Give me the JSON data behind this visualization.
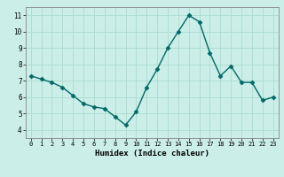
{
  "x": [
    0,
    1,
    2,
    3,
    4,
    5,
    6,
    7,
    8,
    9,
    10,
    11,
    12,
    13,
    14,
    15,
    16,
    17,
    18,
    19,
    20,
    21,
    22,
    23
  ],
  "y": [
    7.3,
    7.1,
    6.9,
    6.6,
    6.1,
    5.6,
    5.4,
    5.3,
    4.8,
    4.3,
    5.1,
    6.6,
    7.7,
    9.0,
    10.0,
    11.0,
    10.6,
    8.7,
    7.3,
    7.9,
    6.9,
    6.9,
    5.8,
    6.0
  ],
  "xlabel": "Humidex (Indice chaleur)",
  "ylim": [
    3.5,
    11.5
  ],
  "xlim": [
    -0.5,
    23.5
  ],
  "yticks": [
    4,
    5,
    6,
    7,
    8,
    9,
    10,
    11
  ],
  "xtick_labels": [
    "0",
    "1",
    "2",
    "3",
    "4",
    "5",
    "6",
    "7",
    "8",
    "9",
    "10",
    "11",
    "12",
    "13",
    "14",
    "15",
    "16",
    "17",
    "18",
    "19",
    "20",
    "21",
    "22",
    "23"
  ],
  "line_color": "#006868",
  "marker_color": "#006868",
  "bg_color": "#cceee8",
  "grid_color": "#aaddcc",
  "spine_color": "#888888"
}
